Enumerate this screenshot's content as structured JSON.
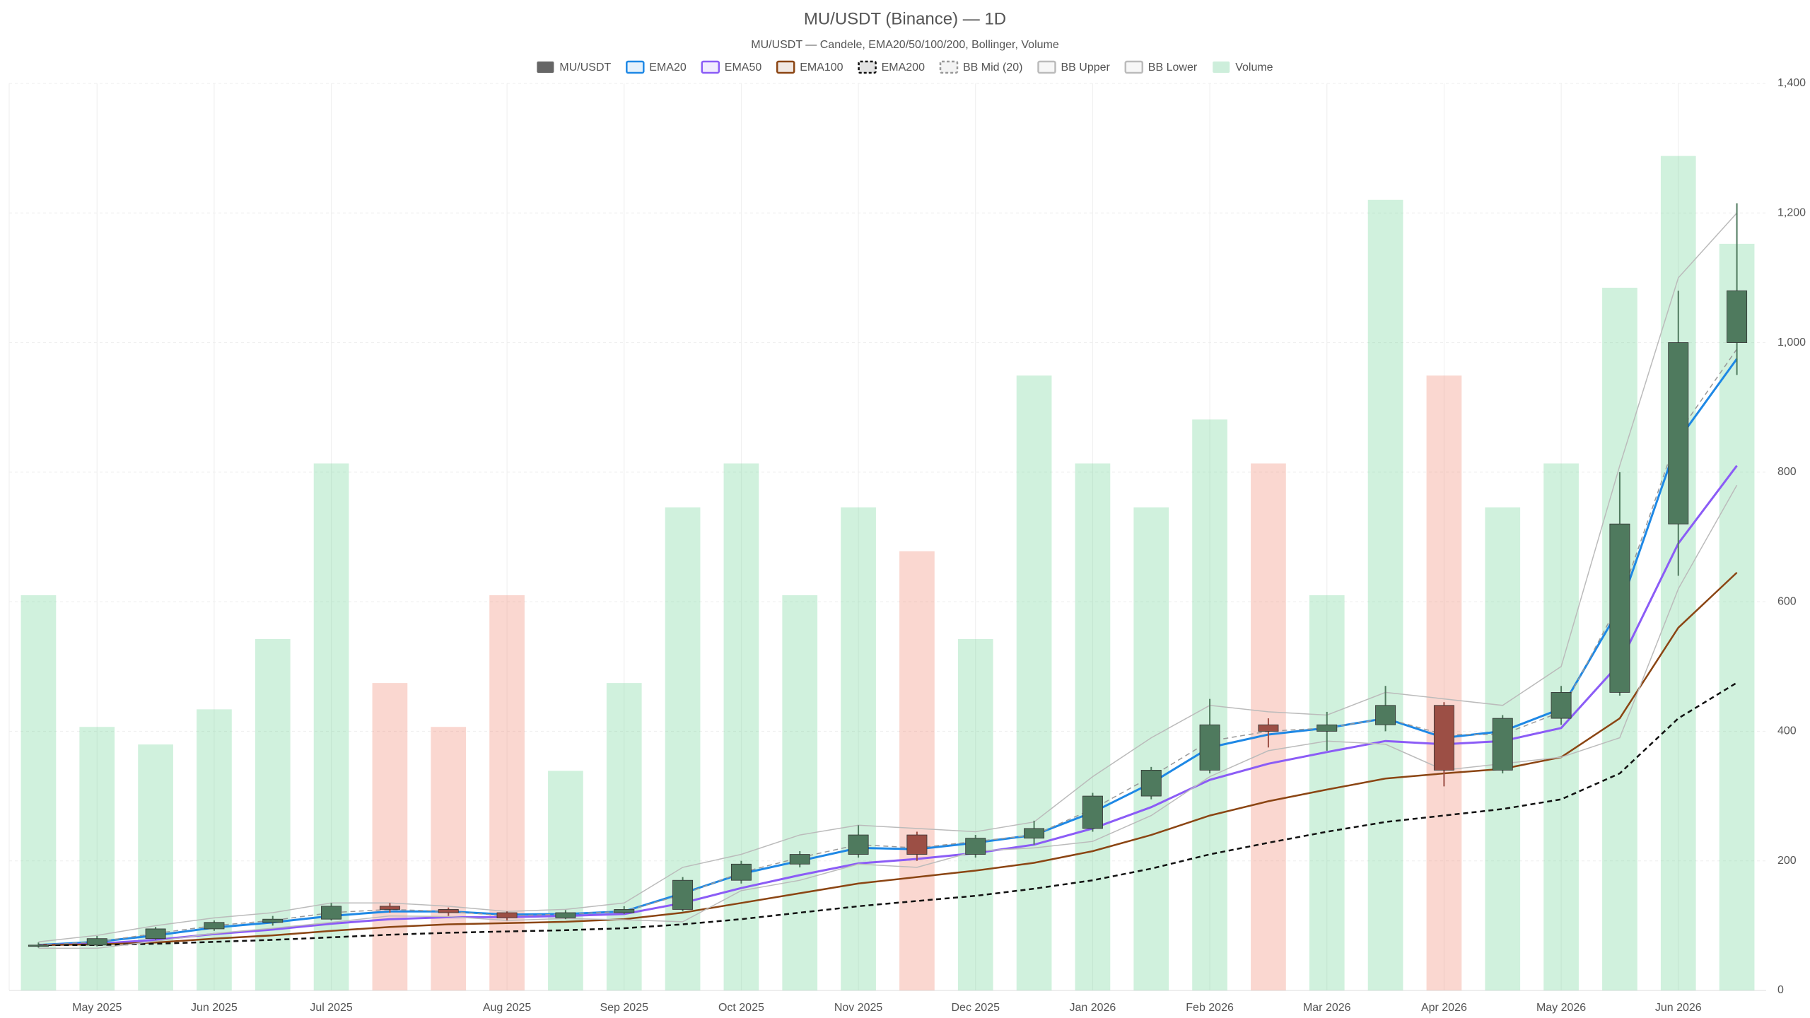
{
  "chart_data": {
    "type": "candlestick",
    "title": "MU/USDT (Binance) — 1D",
    "subtitle": "MU/USDT — Candele, EMA20/50/100/200, Bollinger, Volume",
    "categories": [
      null,
      "May 2025",
      null,
      "Jun 2025",
      null,
      "Jul 2025",
      null,
      null,
      "Aug 2025",
      null,
      "Sep 2025",
      null,
      "Oct 2025",
      null,
      "Nov 2025",
      null,
      "Dec 2025",
      null,
      "Jan 2026",
      null,
      "Feb 2026",
      null,
      "Mar 2026",
      null,
      "Apr 2026",
      null,
      "May 2026",
      null,
      "Jun 2026",
      null
    ],
    "ylim": [
      0,
      1400
    ],
    "yticks": [
      0,
      200,
      400,
      600,
      800,
      {
        "value": 1000,
        "label": "1,000"
      },
      {
        "value": 1200,
        "label": "1,200"
      },
      {
        "value": 1400,
        "label": "1,400"
      }
    ],
    "grid": true,
    "series": [
      {
        "name": "MU/USDT",
        "type": "candlestick",
        "color": "#666666",
        "up_color": "#4f7a5e",
        "down_color": "#9c4f45",
        "open": [
          68,
          70,
          80,
          95,
          105,
          110,
          130,
          125,
          120,
          112,
          120,
          125,
          170,
          195,
          210,
          240,
          210,
          235,
          250,
          300,
          340,
          410,
          400,
          410,
          440,
          340,
          420,
          460,
          720,
          1000
        ],
        "high": [
          74,
          84,
          98,
          108,
          115,
          135,
          135,
          128,
          122,
          124,
          130,
          175,
          200,
          215,
          255,
          245,
          240,
          262,
          305,
          345,
          450,
          420,
          430,
          470,
          445,
          425,
          470,
          800,
          1080,
          1215
        ],
        "low": [
          66,
          68,
          78,
          92,
          100,
          108,
          120,
          115,
          108,
          110,
          118,
          122,
          165,
          190,
          205,
          200,
          205,
          225,
          245,
          295,
          335,
          375,
          370,
          400,
          315,
          335,
          410,
          455,
          640,
          950
        ],
        "close": [
          70,
          80,
          95,
          105,
          110,
          130,
          125,
          120,
          112,
          120,
          125,
          170,
          195,
          210,
          240,
          210,
          235,
          250,
          300,
          340,
          410,
          400,
          410,
          440,
          340,
          420,
          460,
          720,
          1000,
          1080
        ]
      },
      {
        "name": "EMA20",
        "type": "line",
        "color": "#1e88e5",
        "width": 3,
        "values": [
          70,
          75,
          85,
          97,
          105,
          115,
          122,
          122,
          117,
          118,
          122,
          150,
          180,
          200,
          220,
          218,
          228,
          240,
          275,
          320,
          375,
          395,
          405,
          420,
          390,
          400,
          435,
          590,
          850,
          975
        ]
      },
      {
        "name": "EMA50",
        "type": "line",
        "color": "#8b5cf6",
        "width": 3,
        "values": [
          70,
          72,
          78,
          87,
          94,
          103,
          110,
          113,
          113,
          115,
          118,
          135,
          158,
          178,
          196,
          203,
          212,
          225,
          250,
          283,
          325,
          350,
          368,
          385,
          380,
          385,
          405,
          505,
          690,
          810
        ]
      },
      {
        "name": "EMA100",
        "type": "line",
        "color": "#8b4513",
        "width": 2.5,
        "values": [
          70,
          71,
          74,
          80,
          85,
          92,
          98,
          102,
          104,
          106,
          110,
          120,
          135,
          150,
          165,
          175,
          185,
          197,
          215,
          240,
          270,
          292,
          310,
          327,
          335,
          342,
          360,
          420,
          560,
          645
        ]
      },
      {
        "name": "EMA200",
        "type": "line",
        "color": "#111111",
        "width": 2.5,
        "style": "dashed",
        "values": [
          70,
          70,
          72,
          75,
          78,
          82,
          86,
          89,
          91,
          93,
          96,
          102,
          110,
          120,
          130,
          138,
          146,
          157,
          170,
          188,
          210,
          228,
          245,
          260,
          270,
          280,
          295,
          335,
          420,
          475
        ]
      },
      {
        "name": "BB Mid (20)",
        "type": "line",
        "color": "#999999",
        "width": 1.5,
        "style": "dashed",
        "values": [
          70,
          75,
          88,
          100,
          108,
          120,
          125,
          122,
          115,
          118,
          122,
          148,
          182,
          205,
          225,
          220,
          230,
          240,
          280,
          330,
          385,
          400,
          405,
          420,
          395,
          395,
          430,
          600,
          860,
          990
        ]
      },
      {
        "name": "BB Upper",
        "type": "line",
        "color": "#bbbbbb",
        "width": 1.5,
        "values": [
          75,
          85,
          100,
          112,
          120,
          135,
          135,
          130,
          122,
          125,
          135,
          190,
          210,
          240,
          255,
          250,
          245,
          260,
          330,
          390,
          440,
          430,
          425,
          460,
          450,
          440,
          500,
          810,
          1100,
          1200
        ]
      },
      {
        "name": "BB Lower",
        "type": "line",
        "color": "#bbbbbb",
        "width": 1.5,
        "values": [
          65,
          65,
          76,
          88,
          96,
          105,
          115,
          114,
          108,
          111,
          109,
          106,
          154,
          170,
          195,
          190,
          215,
          220,
          230,
          270,
          330,
          370,
          385,
          380,
          340,
          350,
          360,
          390,
          620,
          780
        ]
      },
      {
        "name": "Volume",
        "type": "bar",
        "axis": "y2",
        "color": "#cdeedb",
        "up_color": "rgba(110,210,150,0.32)",
        "down_color": "rgba(240,130,110,0.32)",
        "values": [
          45,
          30,
          28,
          32,
          40,
          60,
          35,
          30,
          45,
          25,
          35,
          55,
          60,
          45,
          55,
          50,
          40,
          70,
          60,
          55,
          65,
          60,
          45,
          90,
          70,
          55,
          60,
          80,
          95,
          85
        ]
      }
    ]
  }
}
